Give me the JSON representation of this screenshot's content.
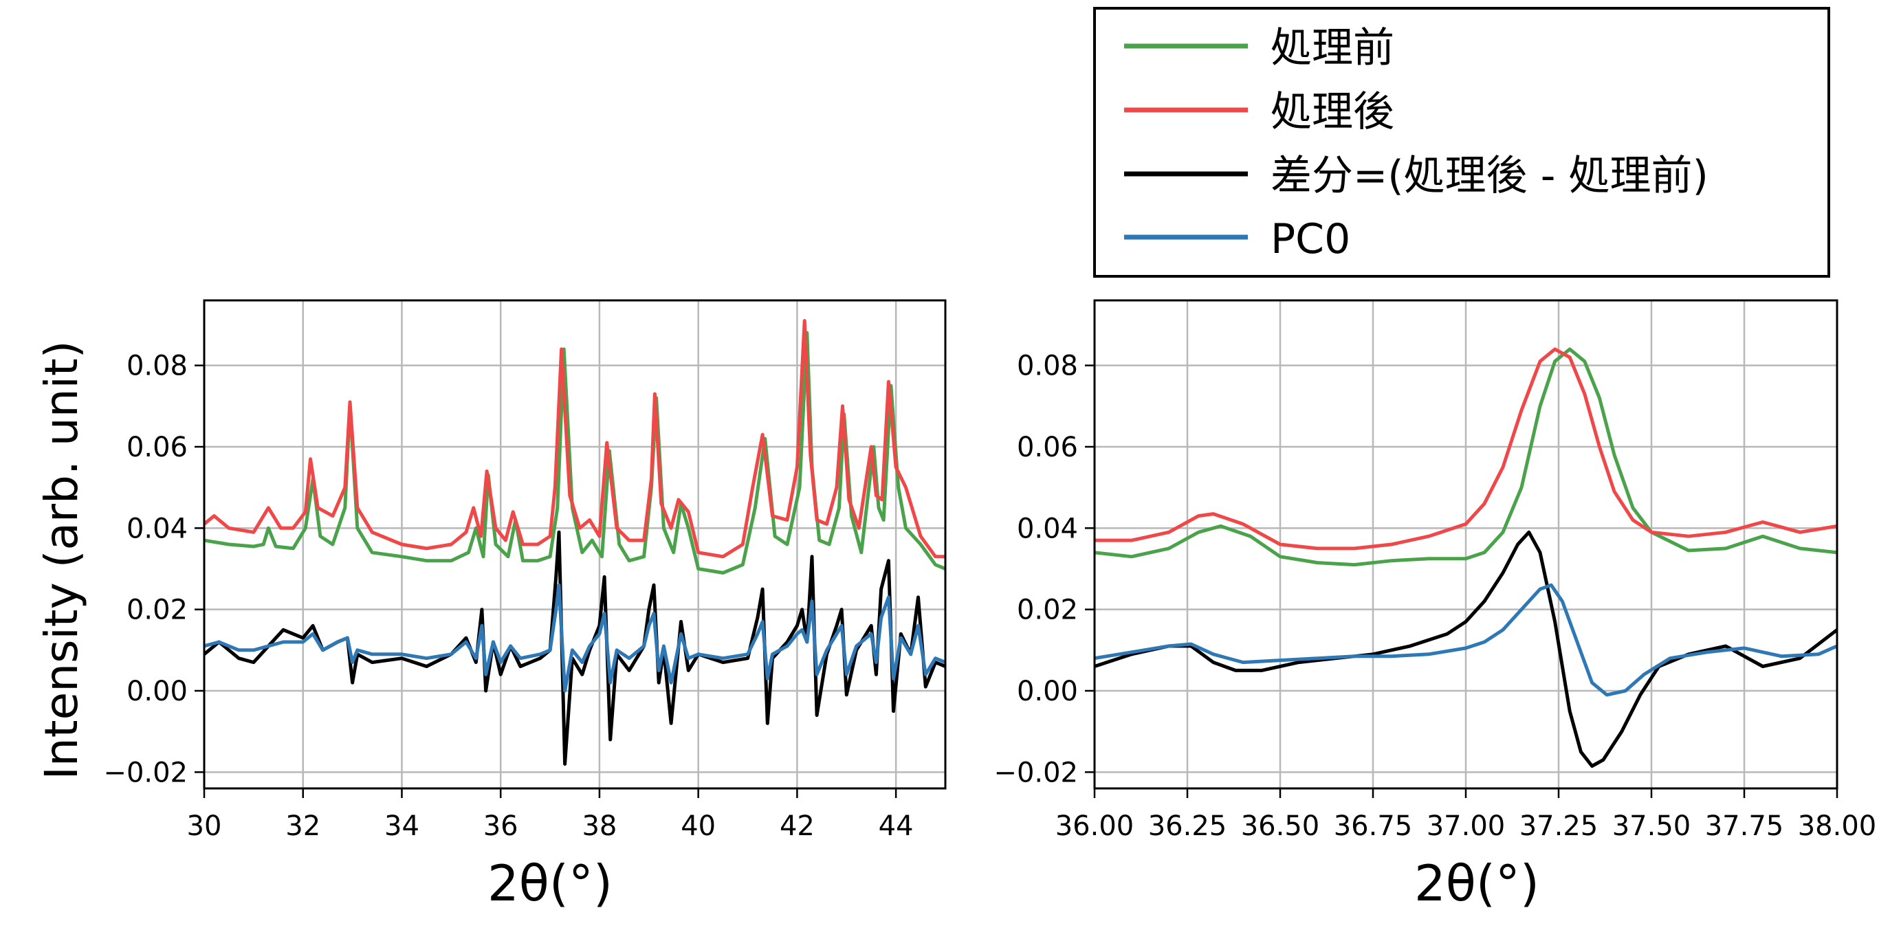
{
  "figure": {
    "ylabel": "Intensity (arb. unit)",
    "legend_placement": "top-right, above right panel",
    "legend": [
      {
        "label": "処理前",
        "color": "#4aa24a"
      },
      {
        "label": "処理後",
        "color": "#f04848"
      },
      {
        "label": "差分=(処理後 - 処理前)",
        "color": "#000000"
      },
      {
        "label": "PC0",
        "color": "#2d78b5"
      }
    ]
  },
  "chart_data": [
    {
      "type": "line",
      "panel": "left",
      "title": "",
      "xlabel": "2θ(°)",
      "ylabel": "Intensity (arb. unit)",
      "xlim": [
        30,
        45
      ],
      "ylim": [
        -0.024,
        0.096
      ],
      "xticks": [
        30,
        32,
        34,
        36,
        38,
        40,
        42,
        44
      ],
      "xtick_labels": [
        "30",
        "32",
        "34",
        "36",
        "38",
        "40",
        "42",
        "44"
      ],
      "yticks": [
        -0.02,
        0.0,
        0.02,
        0.04,
        0.06,
        0.08
      ],
      "ytick_labels": [
        "−0.02",
        "0.00",
        "0.02",
        "0.04",
        "0.06",
        "0.08"
      ],
      "grid": true,
      "series": [
        {
          "name": "処理前",
          "color": "#4aa24a",
          "x": [
            30.0,
            30.5,
            31.0,
            31.2,
            31.3,
            31.45,
            31.8,
            32.05,
            32.2,
            32.35,
            32.6,
            32.85,
            32.95,
            33.1,
            33.4,
            34.0,
            34.5,
            35.0,
            35.35,
            35.5,
            35.65,
            35.75,
            35.9,
            36.15,
            36.3,
            36.45,
            36.75,
            37.0,
            37.15,
            37.28,
            37.45,
            37.65,
            37.85,
            38.05,
            38.2,
            38.4,
            38.6,
            38.9,
            39.05,
            39.15,
            39.3,
            39.5,
            39.65,
            39.8,
            40.0,
            40.5,
            40.9,
            41.15,
            41.35,
            41.55,
            41.8,
            42.05,
            42.2,
            42.3,
            42.45,
            42.65,
            42.85,
            42.95,
            43.1,
            43.3,
            43.55,
            43.65,
            43.75,
            43.9,
            44.05,
            44.2,
            44.5,
            44.8,
            45.0
          ],
          "y": [
            0.037,
            0.036,
            0.0355,
            0.036,
            0.04,
            0.0355,
            0.035,
            0.04,
            0.052,
            0.038,
            0.036,
            0.045,
            0.07,
            0.04,
            0.034,
            0.033,
            0.032,
            0.032,
            0.034,
            0.04,
            0.033,
            0.053,
            0.036,
            0.033,
            0.042,
            0.032,
            0.032,
            0.033,
            0.045,
            0.084,
            0.045,
            0.034,
            0.037,
            0.033,
            0.059,
            0.036,
            0.032,
            0.033,
            0.05,
            0.072,
            0.04,
            0.034,
            0.046,
            0.04,
            0.03,
            0.029,
            0.031,
            0.045,
            0.062,
            0.038,
            0.036,
            0.05,
            0.088,
            0.055,
            0.037,
            0.036,
            0.045,
            0.068,
            0.043,
            0.034,
            0.06,
            0.045,
            0.042,
            0.075,
            0.05,
            0.04,
            0.036,
            0.031,
            0.03
          ]
        },
        {
          "name": "処理後",
          "color": "#f04848",
          "x": [
            30.0,
            30.2,
            30.5,
            31.0,
            31.3,
            31.55,
            31.8,
            32.05,
            32.15,
            32.3,
            32.6,
            32.85,
            32.95,
            33.1,
            33.4,
            34.0,
            34.5,
            35.0,
            35.3,
            35.45,
            35.6,
            35.72,
            35.9,
            36.1,
            36.25,
            36.45,
            36.75,
            37.0,
            37.1,
            37.23,
            37.4,
            37.6,
            37.8,
            38.0,
            38.15,
            38.35,
            38.6,
            38.9,
            39.05,
            39.12,
            39.25,
            39.45,
            39.6,
            39.8,
            40.0,
            40.5,
            40.9,
            41.1,
            41.3,
            41.5,
            41.8,
            42.0,
            42.15,
            42.27,
            42.4,
            42.6,
            42.8,
            42.92,
            43.05,
            43.25,
            43.5,
            43.6,
            43.72,
            43.85,
            44.0,
            44.2,
            44.5,
            44.8,
            45.0
          ],
          "y": [
            0.041,
            0.043,
            0.04,
            0.039,
            0.045,
            0.04,
            0.04,
            0.044,
            0.057,
            0.045,
            0.043,
            0.05,
            0.071,
            0.045,
            0.039,
            0.036,
            0.035,
            0.036,
            0.039,
            0.045,
            0.038,
            0.054,
            0.04,
            0.037,
            0.044,
            0.036,
            0.036,
            0.038,
            0.05,
            0.084,
            0.048,
            0.04,
            0.042,
            0.038,
            0.061,
            0.04,
            0.037,
            0.037,
            0.052,
            0.073,
            0.046,
            0.04,
            0.047,
            0.044,
            0.034,
            0.033,
            0.036,
            0.05,
            0.063,
            0.043,
            0.042,
            0.055,
            0.091,
            0.058,
            0.042,
            0.041,
            0.05,
            0.07,
            0.047,
            0.04,
            0.06,
            0.048,
            0.047,
            0.076,
            0.055,
            0.05,
            0.038,
            0.033,
            0.033
          ]
        },
        {
          "name": "差分=(処理後 - 処理前)",
          "color": "#000000",
          "x": [
            30.0,
            30.3,
            30.7,
            31.0,
            31.3,
            31.6,
            32.0,
            32.2,
            32.4,
            32.7,
            32.9,
            33.0,
            33.1,
            33.4,
            34.0,
            34.5,
            35.0,
            35.3,
            35.5,
            35.62,
            35.7,
            35.85,
            36.0,
            36.2,
            36.4,
            36.8,
            37.0,
            37.12,
            37.18,
            37.3,
            37.45,
            37.65,
            37.8,
            38.0,
            38.1,
            38.22,
            38.35,
            38.6,
            38.9,
            39.0,
            39.1,
            39.2,
            39.3,
            39.45,
            39.65,
            39.8,
            40.0,
            40.5,
            41.0,
            41.2,
            41.3,
            41.4,
            41.5,
            41.8,
            42.0,
            42.1,
            42.2,
            42.3,
            42.4,
            42.6,
            42.8,
            42.9,
            43.0,
            43.2,
            43.5,
            43.6,
            43.7,
            43.85,
            43.95,
            44.1,
            44.3,
            44.45,
            44.6,
            44.8,
            45.0
          ],
          "y": [
            0.009,
            0.012,
            0.008,
            0.007,
            0.011,
            0.015,
            0.013,
            0.016,
            0.01,
            0.012,
            0.013,
            0.002,
            0.009,
            0.007,
            0.008,
            0.006,
            0.009,
            0.013,
            0.007,
            0.02,
            0.0,
            0.012,
            0.004,
            0.011,
            0.006,
            0.008,
            0.01,
            0.028,
            0.039,
            -0.018,
            0.008,
            0.004,
            0.01,
            0.016,
            0.028,
            -0.012,
            0.009,
            0.005,
            0.011,
            0.02,
            0.026,
            0.002,
            0.01,
            -0.008,
            0.017,
            0.005,
            0.009,
            0.007,
            0.008,
            0.018,
            0.025,
            -0.008,
            0.008,
            0.012,
            0.016,
            0.02,
            0.012,
            0.033,
            -0.006,
            0.009,
            0.016,
            0.02,
            -0.001,
            0.01,
            0.016,
            0.004,
            0.025,
            0.032,
            -0.005,
            0.014,
            0.009,
            0.023,
            0.001,
            0.007,
            0.006
          ]
        },
        {
          "name": "PC0",
          "color": "#2d78b5",
          "x": [
            30.0,
            30.3,
            30.7,
            31.0,
            31.3,
            31.6,
            32.0,
            32.2,
            32.4,
            32.7,
            32.9,
            33.0,
            33.1,
            33.4,
            34.0,
            34.5,
            35.0,
            35.3,
            35.5,
            35.62,
            35.7,
            35.85,
            36.0,
            36.2,
            36.4,
            36.8,
            37.0,
            37.12,
            37.18,
            37.3,
            37.45,
            37.65,
            37.8,
            38.0,
            38.1,
            38.22,
            38.35,
            38.6,
            38.9,
            39.0,
            39.1,
            39.2,
            39.3,
            39.45,
            39.65,
            39.8,
            40.0,
            40.5,
            41.0,
            41.2,
            41.3,
            41.4,
            41.5,
            41.8,
            42.0,
            42.1,
            42.2,
            42.3,
            42.4,
            42.6,
            42.8,
            42.9,
            43.0,
            43.2,
            43.5,
            43.6,
            43.7,
            43.85,
            43.95,
            44.1,
            44.3,
            44.45,
            44.6,
            44.8,
            45.0
          ],
          "y": [
            0.011,
            0.012,
            0.01,
            0.01,
            0.011,
            0.012,
            0.012,
            0.014,
            0.01,
            0.012,
            0.013,
            0.007,
            0.01,
            0.009,
            0.009,
            0.008,
            0.009,
            0.012,
            0.008,
            0.016,
            0.004,
            0.012,
            0.007,
            0.011,
            0.008,
            0.009,
            0.01,
            0.02,
            0.026,
            0.0,
            0.01,
            0.007,
            0.011,
            0.014,
            0.019,
            0.002,
            0.01,
            0.008,
            0.011,
            0.016,
            0.019,
            0.005,
            0.011,
            0.002,
            0.014,
            0.008,
            0.009,
            0.008,
            0.009,
            0.014,
            0.017,
            0.003,
            0.009,
            0.011,
            0.014,
            0.015,
            0.012,
            0.022,
            0.004,
            0.01,
            0.014,
            0.016,
            0.004,
            0.011,
            0.014,
            0.007,
            0.018,
            0.023,
            0.003,
            0.013,
            0.009,
            0.016,
            0.004,
            0.008,
            0.007
          ]
        }
      ]
    },
    {
      "type": "line",
      "panel": "right",
      "title": "",
      "xlabel": "2θ(°)",
      "ylabel": "",
      "xlim": [
        36.0,
        38.0
      ],
      "ylim": [
        -0.024,
        0.096
      ],
      "xticks": [
        36.0,
        36.25,
        36.5,
        36.75,
        37.0,
        37.25,
        37.5,
        37.75,
        38.0
      ],
      "xtick_labels": [
        "36.00",
        "36.25",
        "36.50",
        "36.75",
        "37.00",
        "37.25",
        "37.50",
        "37.75",
        "38.00"
      ],
      "yticks": [
        -0.02,
        0.0,
        0.02,
        0.04,
        0.06,
        0.08
      ],
      "ytick_labels": [
        "−0.02",
        "0.00",
        "0.02",
        "0.04",
        "0.06",
        "0.08"
      ],
      "grid": true,
      "series": [
        {
          "name": "処理前",
          "color": "#4aa24a",
          "x": [
            36.0,
            36.1,
            36.2,
            36.28,
            36.34,
            36.42,
            36.5,
            36.6,
            36.7,
            36.8,
            36.9,
            37.0,
            37.05,
            37.1,
            37.15,
            37.2,
            37.24,
            37.28,
            37.32,
            37.36,
            37.4,
            37.45,
            37.5,
            37.6,
            37.7,
            37.8,
            37.9,
            38.0
          ],
          "y": [
            0.034,
            0.033,
            0.035,
            0.039,
            0.0405,
            0.038,
            0.033,
            0.0315,
            0.031,
            0.032,
            0.0325,
            0.0325,
            0.034,
            0.039,
            0.05,
            0.07,
            0.081,
            0.084,
            0.081,
            0.072,
            0.058,
            0.045,
            0.039,
            0.0345,
            0.035,
            0.038,
            0.035,
            0.034
          ]
        },
        {
          "name": "処理後",
          "color": "#f04848",
          "x": [
            36.0,
            36.1,
            36.2,
            36.28,
            36.32,
            36.4,
            36.5,
            36.6,
            36.7,
            36.8,
            36.9,
            37.0,
            37.05,
            37.1,
            37.15,
            37.2,
            37.24,
            37.28,
            37.32,
            37.36,
            37.4,
            37.45,
            37.5,
            37.6,
            37.7,
            37.8,
            37.9,
            38.0
          ],
          "y": [
            0.037,
            0.037,
            0.039,
            0.043,
            0.0435,
            0.041,
            0.036,
            0.035,
            0.035,
            0.036,
            0.038,
            0.041,
            0.046,
            0.055,
            0.069,
            0.081,
            0.084,
            0.082,
            0.073,
            0.06,
            0.049,
            0.042,
            0.039,
            0.038,
            0.039,
            0.0415,
            0.039,
            0.0405
          ]
        },
        {
          "name": "差分=(処理後 - 処理前)",
          "color": "#000000",
          "x": [
            36.0,
            36.1,
            36.2,
            36.26,
            36.32,
            36.38,
            36.45,
            36.55,
            36.65,
            36.75,
            36.85,
            36.95,
            37.0,
            37.05,
            37.1,
            37.14,
            37.17,
            37.2,
            37.24,
            37.28,
            37.31,
            37.34,
            37.37,
            37.42,
            37.47,
            37.52,
            37.6,
            37.7,
            37.8,
            37.9,
            38.0
          ],
          "y": [
            0.006,
            0.009,
            0.011,
            0.011,
            0.007,
            0.005,
            0.005,
            0.007,
            0.008,
            0.009,
            0.011,
            0.014,
            0.017,
            0.022,
            0.029,
            0.036,
            0.039,
            0.034,
            0.017,
            -0.005,
            -0.015,
            -0.0185,
            -0.017,
            -0.01,
            -0.001,
            0.006,
            0.009,
            0.011,
            0.006,
            0.008,
            0.015
          ]
        },
        {
          "name": "PC0",
          "color": "#2d78b5",
          "x": [
            36.0,
            36.1,
            36.2,
            36.26,
            36.32,
            36.4,
            36.5,
            36.6,
            36.7,
            36.8,
            36.9,
            37.0,
            37.05,
            37.1,
            37.15,
            37.2,
            37.23,
            37.26,
            37.3,
            37.34,
            37.38,
            37.43,
            37.48,
            37.55,
            37.65,
            37.75,
            37.85,
            37.95,
            38.0
          ],
          "y": [
            0.008,
            0.0095,
            0.011,
            0.0115,
            0.009,
            0.007,
            0.0075,
            0.008,
            0.0085,
            0.0085,
            0.009,
            0.0105,
            0.012,
            0.015,
            0.02,
            0.025,
            0.026,
            0.022,
            0.012,
            0.002,
            -0.001,
            0.0,
            0.004,
            0.008,
            0.0095,
            0.0105,
            0.0085,
            0.009,
            0.011
          ]
        }
      ]
    }
  ]
}
